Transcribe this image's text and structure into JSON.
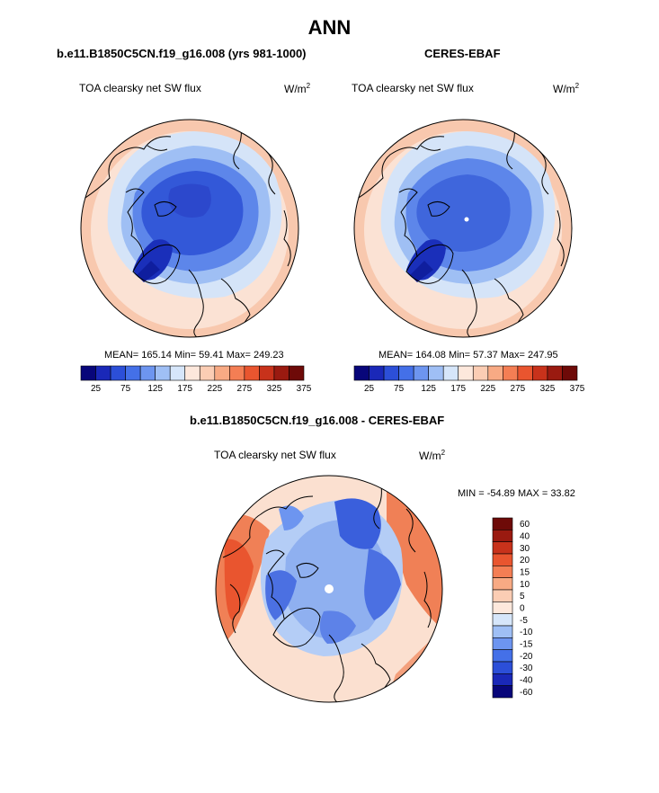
{
  "main_title": "ANN",
  "panels": [
    {
      "case_title": "b.e11.B1850C5CN.f19_g16.008 (yrs 981-1000)",
      "variable": "TOA clearsky net SW flux",
      "units_base": "W/m",
      "units_exp": "2",
      "stats": "MEAN= 165.14  Min=  59.41  Max= 249.23"
    },
    {
      "case_title": "CERES-EBAF",
      "variable": "TOA clearsky net SW flux",
      "units_base": "W/m",
      "units_exp": "2",
      "stats": "MEAN= 164.08  Min=  57.37  Max= 247.95"
    },
    {
      "case_title": "b.e11.B1850C5CN.f19_g16.008 - CERES-EBAF",
      "variable": "TOA clearsky net SW flux",
      "units_base": "W/m",
      "units_exp": "2",
      "stats": "MIN = -54.89 MAX =  33.82"
    }
  ],
  "colorbar_main": {
    "colors": [
      "#08067a",
      "#1a28b8",
      "#2c4fd8",
      "#4470e8",
      "#6d95f0",
      "#9fbff5",
      "#d6e6fa",
      "#fde8dc",
      "#fbcdb4",
      "#f8aa84",
      "#f47e54",
      "#e9552f",
      "#c8321b",
      "#9a1a10",
      "#6e0a08"
    ],
    "labels": [
      "25",
      "75",
      "125",
      "175",
      "225",
      "275",
      "325",
      "375"
    ]
  },
  "colorbar_diff": {
    "colors": [
      "#08067a",
      "#1a28b8",
      "#2c4fd8",
      "#4470e8",
      "#6d95f0",
      "#9fbff5",
      "#d6e6fa",
      "#fde8dc",
      "#fbcdb4",
      "#f8aa84",
      "#f47e54",
      "#e9552f",
      "#c8321b",
      "#9a1a10",
      "#6e0a08"
    ],
    "labels": [
      "60",
      "40",
      "30",
      "20",
      "15",
      "10",
      "5",
      "0",
      "-5",
      "-10",
      "-15",
      "-20",
      "-30",
      "-40",
      "-60"
    ]
  }
}
